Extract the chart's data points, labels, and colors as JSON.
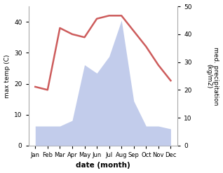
{
  "months": [
    "Jan",
    "Feb",
    "Mar",
    "Apr",
    "May",
    "Jun",
    "Jul",
    "Aug",
    "Sep",
    "Oct",
    "Nov",
    "Dec"
  ],
  "temperature": [
    19,
    18,
    38,
    36,
    35,
    41,
    42,
    42,
    37,
    32,
    26,
    21
  ],
  "precipitation": [
    7,
    7,
    7,
    9,
    29,
    26,
    32,
    45,
    16,
    7,
    7,
    6
  ],
  "temp_color": "#cd5c5c",
  "precip_fill_color": "#b8c4e8",
  "ylabel_left": "max temp (C)",
  "ylabel_right": "med. precipitation\n(kg/m2)",
  "xlabel": "date (month)",
  "ylim_left": [
    0,
    45
  ],
  "ylim_right": [
    0,
    50
  ],
  "yticks_left": [
    0,
    10,
    20,
    30,
    40
  ],
  "yticks_right": [
    0,
    10,
    20,
    30,
    40,
    50
  ],
  "background_color": "#ffffff"
}
